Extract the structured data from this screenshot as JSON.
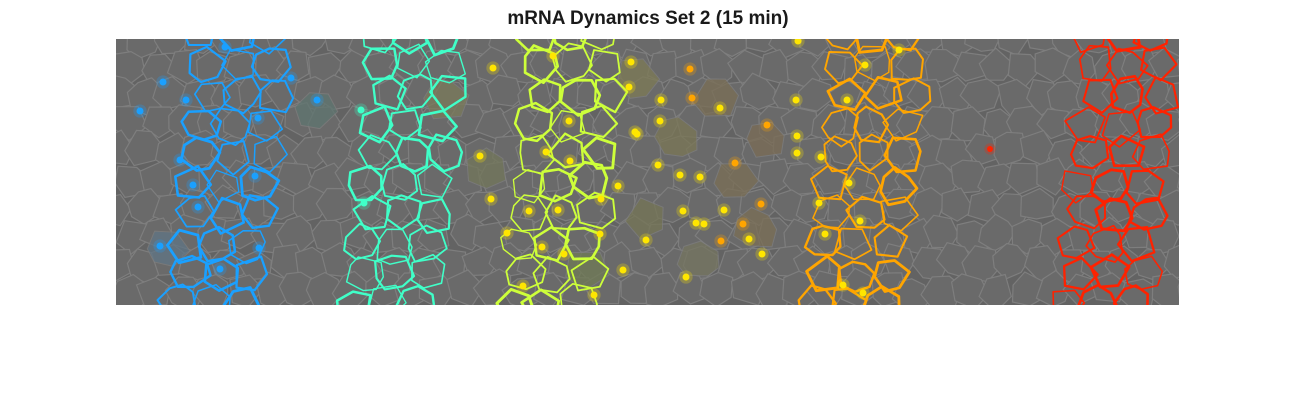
{
  "title": "mRNA Dynamics Set 2 (15 min)",
  "colors": {
    "background": "#636363",
    "cell_fill": "#6a6a6a",
    "cell_edge": "#7e7e7e",
    "blue": "#1aa0ff",
    "cyan": "#40ffc8",
    "lime": "#cdff3a",
    "yellow": "#ffe600",
    "orange": "#ffa500",
    "red": "#ff2200"
  },
  "stripes": [
    {
      "name": "blue",
      "color_key": "blue"
    },
    {
      "name": "cyan",
      "color_key": "cyan"
    },
    {
      "name": "lime",
      "color_key": "lime"
    },
    {
      "name": "orange",
      "color_key": "orange"
    },
    {
      "name": "red",
      "color_key": "red"
    }
  ]
}
